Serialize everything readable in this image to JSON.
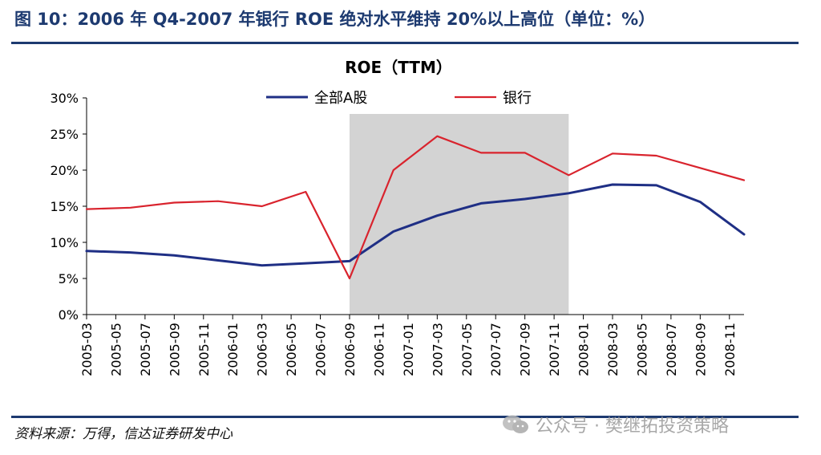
{
  "header": {
    "figure_title": "图 10：2006 年 Q4-2007 年银行 ROE 绝对水平维持 20%以上高位（单位：%）"
  },
  "footer": {
    "source": "资料来源：万得，信达证券研发中心",
    "watermark": "公众号 · 樊继拓投资策略"
  },
  "chart_data": {
    "type": "line",
    "title": "ROE（TTM）",
    "xlabel": "",
    "ylabel": "",
    "ylim": [
      0,
      30
    ],
    "yticks": [
      0,
      5,
      10,
      15,
      20,
      25,
      30
    ],
    "ytick_labels": [
      "0%",
      "5%",
      "10%",
      "15%",
      "20%",
      "25%",
      "30%"
    ],
    "categories": [
      "2005-03",
      "2005-05",
      "2005-07",
      "2005-09",
      "2005-11",
      "2006-01",
      "2006-03",
      "2006-05",
      "2006-07",
      "2006-09",
      "2006-11",
      "2007-01",
      "2007-03",
      "2007-05",
      "2007-07",
      "2007-09",
      "2007-11",
      "2008-01",
      "2008-03",
      "2008-05",
      "2008-07",
      "2008-09",
      "2008-11"
    ],
    "x": [
      "2005-03",
      "2005-06",
      "2005-09",
      "2005-12",
      "2006-03",
      "2006-06",
      "2006-09",
      "2006-12",
      "2007-03",
      "2007-06",
      "2007-09",
      "2007-12",
      "2008-03",
      "2008-06",
      "2008-09",
      "2008-12"
    ],
    "series": [
      {
        "name": "全部A股",
        "color": "#1f2f85",
        "values": [
          8.8,
          8.6,
          8.2,
          7.5,
          6.8,
          7.1,
          7.4,
          11.5,
          13.7,
          15.4,
          16.0,
          16.8,
          18.0,
          17.9,
          15.6,
          11.1
        ]
      },
      {
        "name": "银行",
        "color": "#d9232d",
        "values": [
          14.6,
          14.8,
          15.5,
          15.7,
          15.0,
          17.0,
          5.0,
          20.0,
          24.7,
          22.4,
          22.4,
          19.3,
          22.3,
          22.0,
          20.3,
          18.6
        ]
      }
    ],
    "shaded_region": {
      "from": "2006-09",
      "to": "2007-12",
      "color": "#d3d3d3"
    },
    "legend_position": "top-center",
    "grid": false
  }
}
